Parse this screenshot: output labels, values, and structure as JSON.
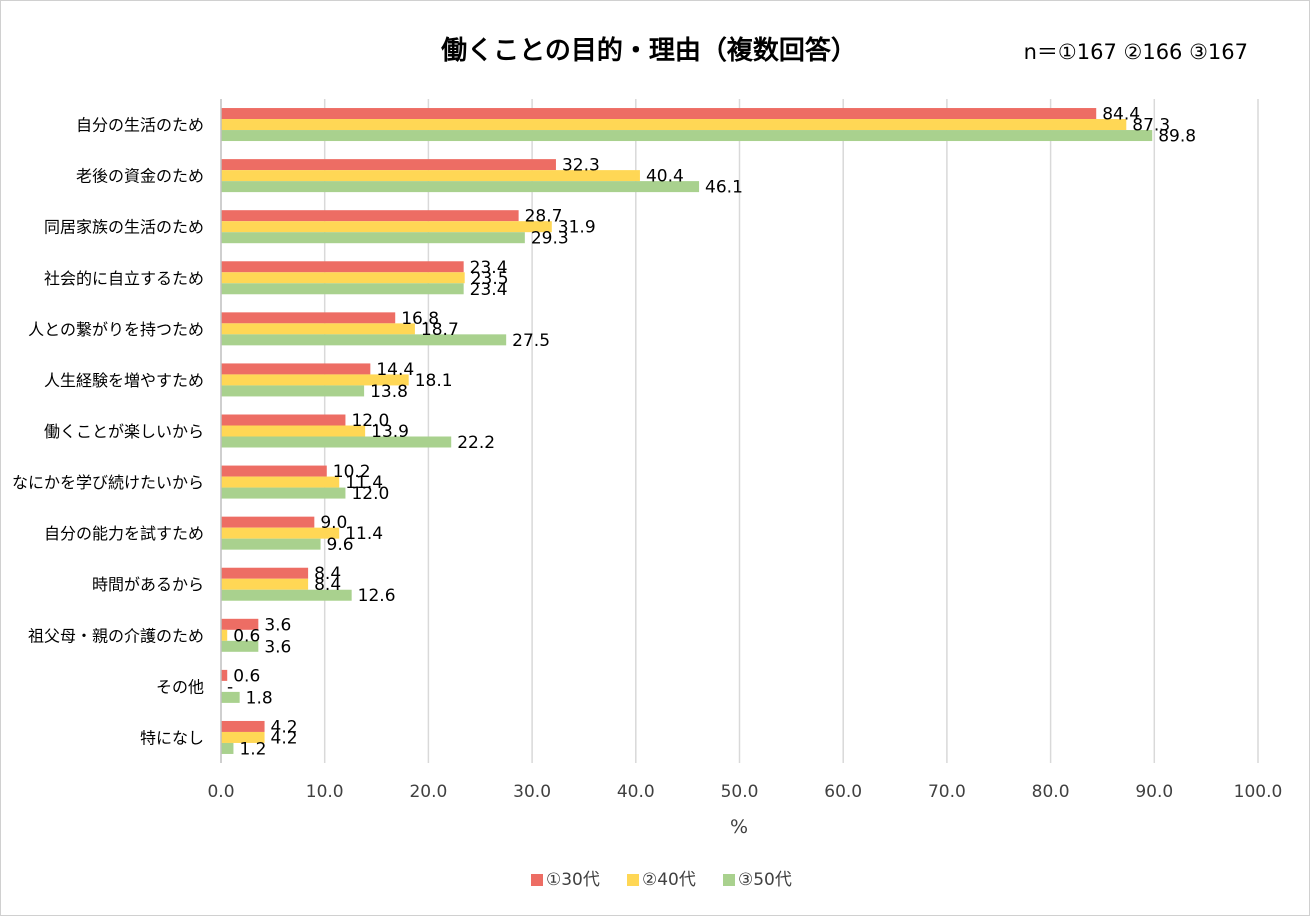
{
  "chart_data": {
    "type": "bar",
    "orientation": "horizontal",
    "title": "働くことの目的・理由（複数回答）",
    "sample_note": "n＝①167 ②166 ③167",
    "xlabel": "%",
    "ylabel": "",
    "xlim": [
      0,
      100
    ],
    "x_ticks": [
      "0.0",
      "10.0",
      "20.0",
      "30.0",
      "40.0",
      "50.0",
      "60.0",
      "70.0",
      "80.0",
      "90.0",
      "100.0"
    ],
    "grid": true,
    "legend_position": "bottom",
    "categories": [
      "自分の生活のため",
      "老後の資金のため",
      "同居家族の生活のため",
      "社会的に自立するため",
      "人との繋がりを持つため",
      "人生経験を増やすため",
      "働くことが楽しいから",
      "なにかを学び続けたいから",
      "自分の能力を試すため",
      "時間があるから",
      "祖父母・親の介護のため",
      "その他",
      "特になし"
    ],
    "series": [
      {
        "name": "①30代",
        "color": "#ED6D64",
        "values": [
          84.4,
          32.3,
          28.7,
          23.4,
          16.8,
          14.4,
          12.0,
          10.2,
          9.0,
          8.4,
          3.6,
          0.6,
          4.2
        ],
        "labels": [
          "84.4",
          "32.3",
          "28.7",
          "23.4",
          "16.8",
          "14.4",
          "12.0",
          "10.2",
          "9.0",
          "8.4",
          "3.6",
          "0.6",
          "4.2"
        ]
      },
      {
        "name": "②40代",
        "color": "#FFD755",
        "values": [
          87.3,
          40.4,
          31.9,
          23.5,
          18.7,
          18.1,
          13.9,
          11.4,
          11.4,
          8.4,
          0.6,
          0.0,
          4.2
        ],
        "labels": [
          "87.3",
          "40.4",
          "31.9",
          "23.5",
          "18.7",
          "18.1",
          "13.9",
          "11.4",
          "11.4",
          "8.4",
          "0.6",
          "-",
          "4.2"
        ]
      },
      {
        "name": "③50代",
        "color": "#A9D18E",
        "values": [
          89.8,
          46.1,
          29.3,
          23.4,
          27.5,
          13.8,
          22.2,
          12.0,
          9.6,
          12.6,
          3.6,
          1.8,
          1.2
        ],
        "labels": [
          "89.8",
          "46.1",
          "29.3",
          "23.4",
          "27.5",
          "13.8",
          "22.2",
          "12.0",
          "9.6",
          "12.6",
          "3.6",
          "1.8",
          "1.2"
        ]
      }
    ]
  }
}
